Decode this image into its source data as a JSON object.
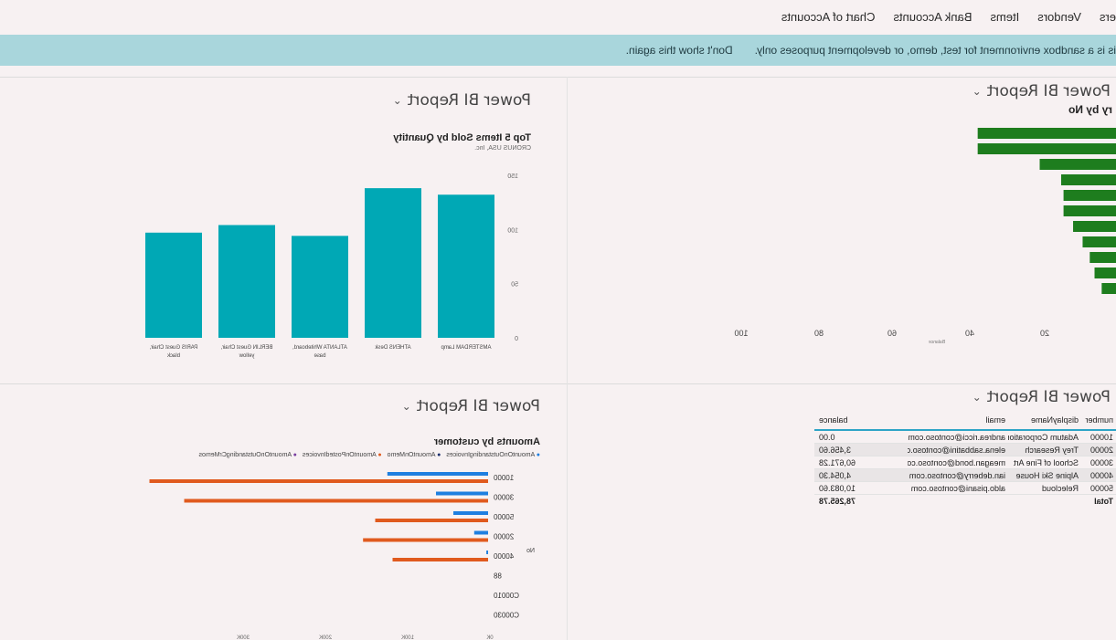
{
  "nav": {
    "items": [
      "ers",
      "Vendors",
      "Items",
      "Bank Accounts",
      "Chart of Accounts"
    ]
  },
  "banner": {
    "message": "is is a sandbox environment for test, demo, or development purposes only.",
    "dismiss": "Don't show this again."
  },
  "panels": {
    "top_left_title": "Power BI Report",
    "top_right_title": "Power BI Report",
    "bottom_left_title": "Power BI Report",
    "bottom_right_title": "Power BI Report"
  },
  "top_right_chart": {
    "title_fragment": "ry by No",
    "axis_caption": "Balance"
  },
  "chart_data": [
    {
      "type": "bar",
      "title": "Top 5 Items Sold by Quantity",
      "subtitle": "CRONUS USA, Inc.",
      "categories": [
        "AMSTERDAM Lamp",
        "ATHENS Desk",
        "ATLANTA Whiteboard, base",
        "BERLIN Guest Chair, yellow",
        "PARIS Guest Chair, black"
      ],
      "values": [
        132,
        138,
        94,
        104,
        97
      ],
      "yticks": [
        "0",
        "50",
        "100",
        "150"
      ],
      "ylim": [
        0,
        160
      ],
      "color": "#00a8b5"
    },
    {
      "type": "bar",
      "orientation": "horizontal",
      "title": "",
      "values": [
        58,
        58,
        32,
        23,
        22,
        22,
        18,
        14,
        11,
        9,
        6
      ],
      "xticks": [
        "100",
        "80",
        "60",
        "40",
        "20"
      ],
      "xlim": [
        0,
        110
      ],
      "color": "#1e7d1e"
    },
    {
      "type": "bar",
      "orientation": "horizontal",
      "title": "Amounts by customer",
      "legend": [
        "AmountOnOutstandingInvoices",
        "AmountOnMemo",
        "AmountOnPostedInvoices",
        "AmountOnOutstandingCrMemos"
      ],
      "legend_colors": [
        "#1e7fe0",
        "#1a2f6e",
        "#e05a1e",
        "#7a3fa0"
      ],
      "categories": [
        "10000",
        "30000",
        "50000",
        "20000",
        "40000",
        "88",
        "C00010",
        "C00030"
      ],
      "series": [
        {
          "name": "AmountOnOutstandingInvoices",
          "values": [
            58,
            30,
            20,
            8,
            1,
            0,
            0,
            0
          ]
        },
        {
          "name": "AmountOnPostedInvoices",
          "values": [
            195,
            175,
            65,
            72,
            55,
            0,
            0,
            0
          ]
        }
      ],
      "ylabel": "No",
      "xticks": [
        "0K",
        "100K",
        "200K",
        "300K"
      ]
    }
  ],
  "customer_table": {
    "headers": [
      "number",
      "displayName",
      "email",
      "balance"
    ],
    "rows": [
      [
        "10000",
        "Adatum Corporation",
        "andrea.ricci@contoso.com",
        "0.00"
      ],
      [
        "20000",
        "Trey Research",
        "elena.sabbatini@contoso.com",
        "3,456.60"
      ],
      [
        "30000",
        "School of Fine Art",
        "meagan.bond@contoso.com",
        "60,671.28"
      ],
      [
        "40000",
        "Alpine Ski House",
        "ian.deberry@contoso.com",
        "4,054.30"
      ],
      [
        "50000",
        "Relecloud",
        "aldo.pisani@contoso.com",
        "10,083.60"
      ]
    ],
    "total_label": "Total",
    "total_value": "78,265.78"
  }
}
